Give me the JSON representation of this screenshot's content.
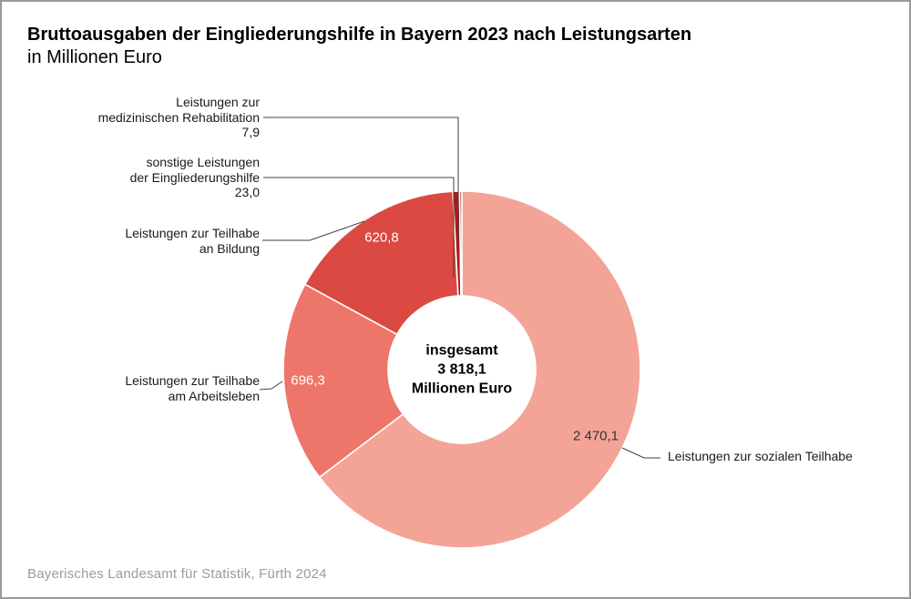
{
  "header": {
    "title": "Bruttoausgaben der Eingliederungshilfe in Bayern 2023 nach Leistungsarten",
    "subtitle": "in Millionen Euro"
  },
  "center": {
    "line1": "insgesamt",
    "line2": "3 818,1",
    "line3": "Millionen Euro"
  },
  "footer": {
    "source": "Bayerisches Landesamt für Statistik, Fürth 2024"
  },
  "callouts": [
    {
      "id": "medizinische-rehabilitation",
      "lines": [
        "Leistungen zur",
        "medizinischen Rehabilitation",
        "7,9"
      ]
    },
    {
      "id": "sonstige-leistungen",
      "lines": [
        "sonstige Leistungen",
        "der Eingliederungshilfe",
        "23,0"
      ]
    },
    {
      "id": "teilhabe-bildung",
      "lines": [
        "Leistungen zur Teilhabe",
        "an Bildung"
      ]
    },
    {
      "id": "teilhabe-arbeitsleben",
      "lines": [
        "Leistungen zur Teilhabe",
        "am Arbeitsleben"
      ]
    },
    {
      "id": "soziale-teilhabe",
      "lines": [
        "Leistungen zur sozialen Teilhabe"
      ]
    }
  ],
  "chart_data": {
    "type": "pie",
    "variant": "donut",
    "title": "Bruttoausgaben der Eingliederungshilfe in Bayern 2023 nach Leistungsarten",
    "subtitle": "in Millionen Euro",
    "unit": "Millionen Euro",
    "total": 3818.1,
    "total_display": "3 818,1",
    "center_label": "insgesamt 3 818,1 Millionen Euro",
    "start_angle_deg": 0,
    "direction": "clockwise-from-top",
    "segments": [
      {
        "name": "soziale-teilhabe",
        "label": "Leistungen zur sozialen Teilhabe",
        "value": 2470.1,
        "display": "2 470,1",
        "color": "#F3A497"
      },
      {
        "name": "teilhabe-arbeitsleben",
        "label": "Leistungen zur Teilhabe am Arbeitsleben",
        "value": 696.3,
        "display": "696,3",
        "color": "#EE7569"
      },
      {
        "name": "teilhabe-bildung",
        "label": "Leistungen zur Teilhabe an Bildung",
        "value": 620.8,
        "display": "620,8",
        "color": "#DA4A42"
      },
      {
        "name": "sonstige-leistungen",
        "label": "sonstige Leistungen der Eingliederungshilfe",
        "value": 23.0,
        "display": "23,0",
        "color": "#AE1917"
      },
      {
        "name": "medizinische-rehabilitation",
        "label": "Leistungen zur medizinischen Rehabilitation",
        "value": 7.9,
        "display": "7,9",
        "color": "#C0443C"
      }
    ],
    "source": "Bayerisches Landesamt für Statistik, Fürth 2024"
  }
}
